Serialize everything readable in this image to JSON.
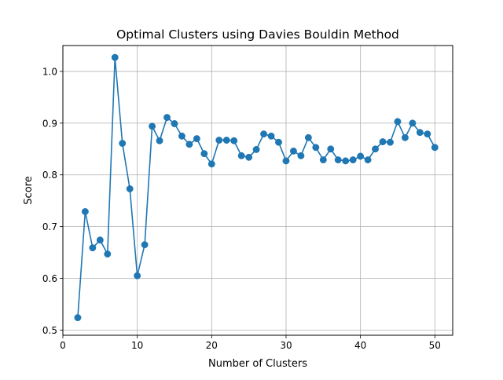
{
  "chart_data": {
    "type": "line",
    "title": "Optimal Clusters using Davies Bouldin Method",
    "xlabel": "Number of Clusters",
    "ylabel": "Score",
    "xlim": [
      0,
      52.4
    ],
    "ylim": [
      0.49,
      1.05
    ],
    "x_ticks": [
      0,
      10,
      20,
      30,
      40,
      50
    ],
    "y_ticks": [
      0.5,
      0.6,
      0.7,
      0.8,
      0.9,
      1.0
    ],
    "x_tick_labels": [
      "0",
      "10",
      "20",
      "30",
      "40",
      "50"
    ],
    "y_tick_labels": [
      "0.5",
      "0.6",
      "0.7",
      "0.8",
      "0.9",
      "1.0"
    ],
    "grid": true,
    "series": [
      {
        "color": "#1f77b4",
        "marker": "circle",
        "x": [
          2,
          3,
          4,
          5,
          6,
          7,
          8,
          9,
          10,
          11,
          12,
          13,
          14,
          15,
          16,
          17,
          18,
          19,
          20,
          21,
          22,
          23,
          24,
          25,
          26,
          27,
          28,
          29,
          30,
          31,
          32,
          33,
          34,
          35,
          36,
          37,
          38,
          39,
          40,
          41,
          42,
          43,
          44,
          45,
          46,
          47,
          48,
          49,
          50
        ],
        "y": [
          0.524,
          0.729,
          0.659,
          0.674,
          0.647,
          1.027,
          0.861,
          0.773,
          0.605,
          0.665,
          0.894,
          0.866,
          0.911,
          0.899,
          0.875,
          0.859,
          0.87,
          0.841,
          0.821,
          0.867,
          0.867,
          0.866,
          0.837,
          0.834,
          0.849,
          0.879,
          0.875,
          0.863,
          0.827,
          0.846,
          0.837,
          0.872,
          0.853,
          0.829,
          0.85,
          0.829,
          0.827,
          0.829,
          0.836,
          0.829,
          0.85,
          0.864,
          0.863,
          0.903,
          0.872,
          0.9,
          0.882,
          0.879,
          0.853
        ]
      }
    ]
  }
}
